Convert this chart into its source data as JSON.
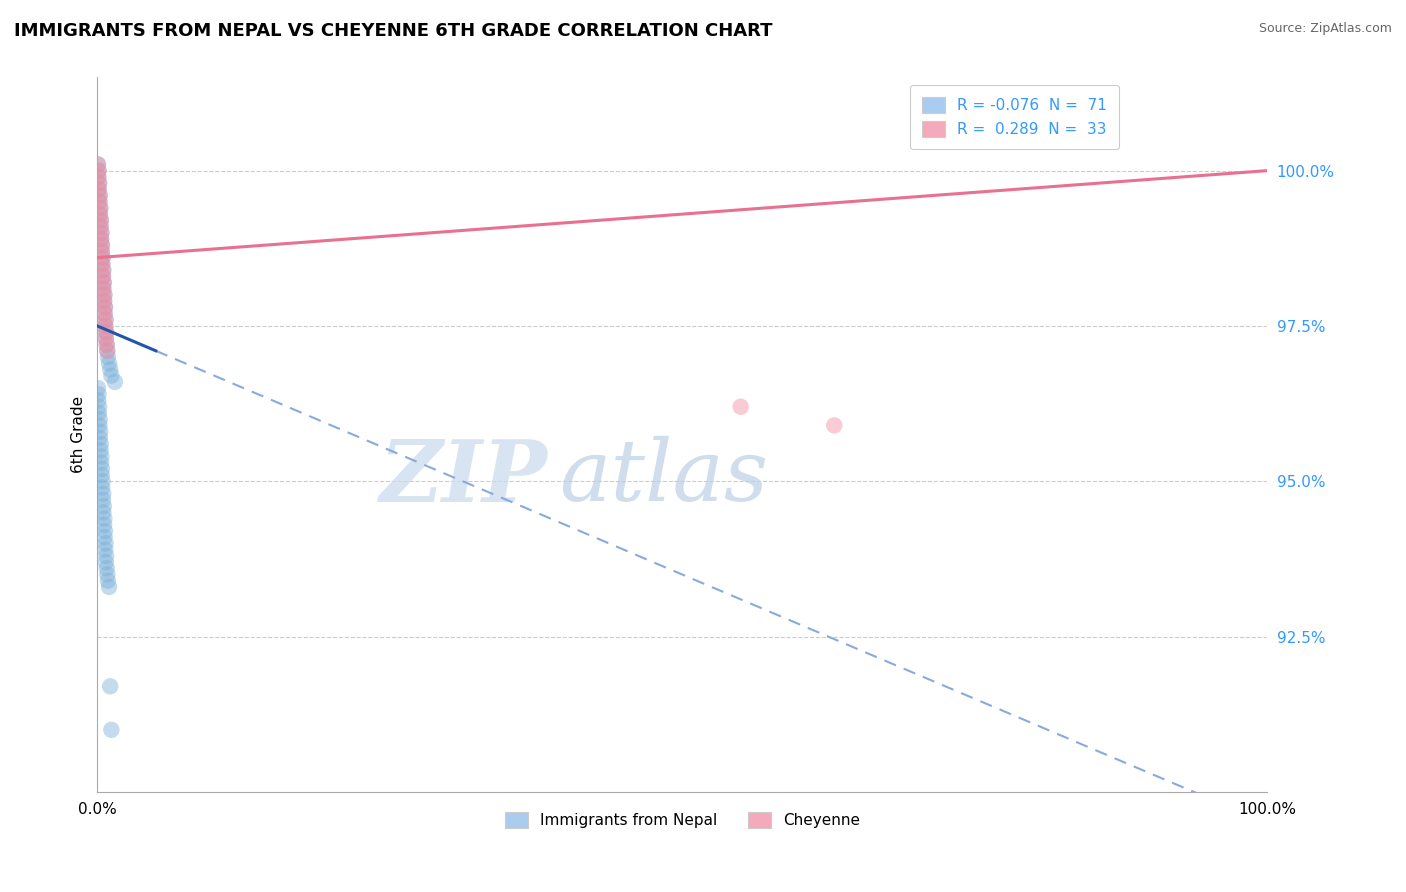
{
  "title": "IMMIGRANTS FROM NEPAL VS CHEYENNE 6TH GRADE CORRELATION CHART",
  "source": "Source: ZipAtlas.com",
  "ylabel": "6th Grade",
  "y_ticks": [
    92.5,
    95.0,
    97.5,
    100.0
  ],
  "xlim": [
    0.0,
    100.0
  ],
  "ylim": [
    90.0,
    101.5
  ],
  "blue_label": "Immigrants from Nepal",
  "pink_label": "Cheyenne",
  "blue_color": "#7ab0d8",
  "pink_color": "#f48ca0",
  "blue_line_solid_color": "#2255aa",
  "blue_line_dash_color": "#88aadd",
  "pink_line_color": "#e87090",
  "grid_color": "#cccccc",
  "tick_color": "#3399ff",
  "legend_blue_text": "R = -0.076  N =  71",
  "legend_pink_text": "R =  0.289  N =  33",
  "legend_blue_patch": "#aaccee",
  "legend_pink_patch": "#f4aabb",
  "title_fontsize": 13,
  "source_fontsize": 9,
  "tick_fontsize": 11,
  "ylabel_fontsize": 11,
  "legend_fontsize": 11,
  "blue_solid_end_x": 5.0,
  "blue_intercept": 97.5,
  "blue_slope_per100": -8.0,
  "pink_intercept": 98.6,
  "pink_slope_per100": 1.4,
  "blue_scatter_x": [
    0.05,
    0.1,
    0.08,
    0.15,
    0.12,
    0.2,
    0.18,
    0.25,
    0.22,
    0.3,
    0.28,
    0.35,
    0.32,
    0.4,
    0.38,
    0.45,
    0.42,
    0.5,
    0.48,
    0.55,
    0.52,
    0.6,
    0.58,
    0.65,
    0.62,
    0.7,
    0.68,
    0.75,
    0.72,
    0.8,
    0.85,
    0.9,
    1.0,
    1.1,
    1.2,
    1.5,
    0.05,
    0.1,
    0.08,
    0.15,
    0.12,
    0.2,
    0.18,
    0.25,
    0.22,
    0.3,
    0.28,
    0.35,
    0.32,
    0.4,
    0.38,
    0.45,
    0.42,
    0.5,
    0.48,
    0.55,
    0.52,
    0.6,
    0.58,
    0.65,
    0.62,
    0.7,
    0.68,
    0.75,
    0.72,
    0.8,
    0.85,
    0.9,
    1.0,
    1.1,
    1.2
  ],
  "blue_scatter_y": [
    100.1,
    100.0,
    99.9,
    99.8,
    99.7,
    99.6,
    99.5,
    99.4,
    99.3,
    99.2,
    99.1,
    99.0,
    98.9,
    98.8,
    98.7,
    98.6,
    98.5,
    98.4,
    98.3,
    98.2,
    98.1,
    98.0,
    97.9,
    97.8,
    97.7,
    97.6,
    97.5,
    97.4,
    97.3,
    97.2,
    97.1,
    97.0,
    96.9,
    96.8,
    96.7,
    96.6,
    96.5,
    96.4,
    96.3,
    96.2,
    96.1,
    96.0,
    95.9,
    95.8,
    95.7,
    95.6,
    95.5,
    95.4,
    95.3,
    95.2,
    95.1,
    95.0,
    94.9,
    94.8,
    94.7,
    94.6,
    94.5,
    94.4,
    94.3,
    94.2,
    94.1,
    94.0,
    93.9,
    93.8,
    93.7,
    93.6,
    93.5,
    93.4,
    93.3,
    91.7,
    91.0
  ],
  "pink_scatter_x": [
    0.05,
    0.1,
    0.08,
    0.15,
    0.12,
    0.2,
    0.18,
    0.25,
    0.22,
    0.3,
    0.28,
    0.35,
    0.32,
    0.4,
    0.38,
    0.45,
    0.42,
    0.5,
    0.48,
    0.55,
    0.52,
    0.6,
    0.58,
    0.65,
    0.62,
    0.7,
    0.68,
    0.75,
    0.72,
    0.8,
    55.0,
    63.0,
    0.85
  ],
  "pink_scatter_y": [
    100.1,
    100.0,
    99.9,
    99.8,
    99.7,
    99.6,
    99.5,
    99.4,
    99.3,
    99.2,
    99.1,
    99.0,
    98.9,
    98.8,
    98.7,
    98.6,
    98.5,
    98.4,
    98.3,
    98.2,
    98.1,
    98.0,
    97.9,
    97.8,
    97.7,
    97.6,
    97.5,
    97.4,
    97.3,
    97.2,
    96.2,
    95.9,
    97.1
  ]
}
